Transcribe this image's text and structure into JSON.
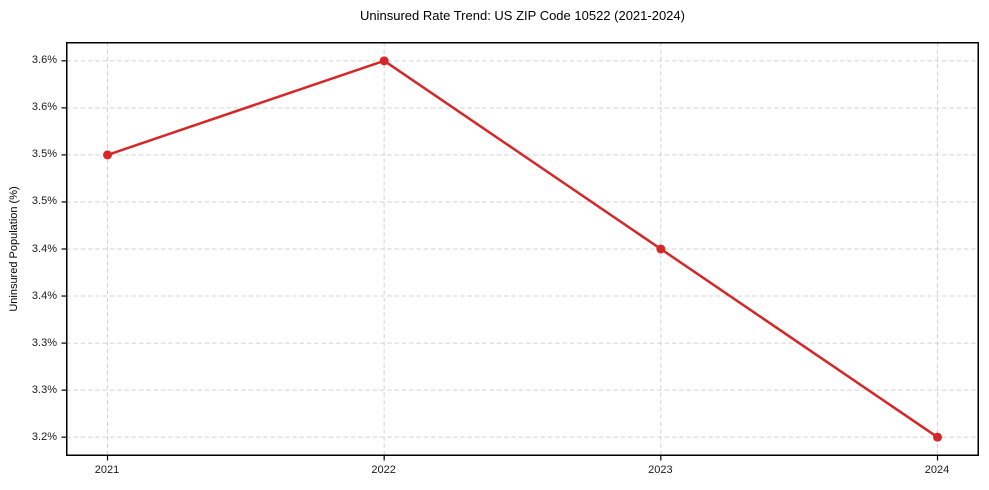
{
  "chart_data": {
    "type": "line",
    "title": "Uninsured Rate Trend: US ZIP Code 10522 (2021-2024)",
    "xlabel": "",
    "ylabel": "Uninsured Population (%)",
    "x": [
      2021,
      2022,
      2023,
      2024
    ],
    "x_tick_labels": [
      "2021",
      "2022",
      "2023",
      "2024"
    ],
    "values": [
      3.5,
      3.6,
      3.4,
      3.2
    ],
    "xlim": [
      2020.85,
      2024.15
    ],
    "ylim": [
      3.18,
      3.62
    ],
    "y_ticks": [
      3.2,
      3.25,
      3.3,
      3.35,
      3.4,
      3.45,
      3.5,
      3.55,
      3.6
    ],
    "y_tick_labels": [
      "3.2%",
      "3.3%",
      "3.3%",
      "3.4%",
      "3.4%",
      "3.5%",
      "3.5%",
      "3.6%",
      "3.6%"
    ],
    "grid": true,
    "grid_style": "dashed",
    "legend": false,
    "styles": {
      "line_color": "#d62728",
      "marker": "circle",
      "marker_size": 9,
      "line_width": 2.5,
      "grid_color": "#d3d3d3",
      "frame_color": "#000000",
      "tick_color": "#000000",
      "text_color": "#1a1a1a",
      "background": "#ffffff"
    }
  }
}
